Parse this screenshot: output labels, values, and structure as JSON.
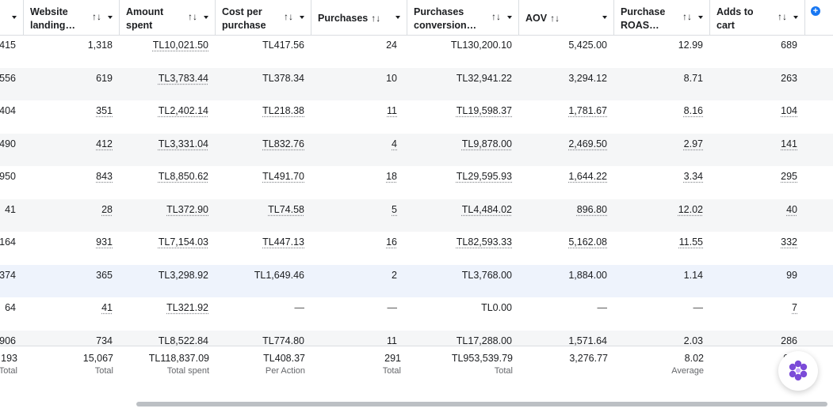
{
  "headers": [
    {
      "label": "",
      "sort": ""
    },
    {
      "label": "Website landing…",
      "sort": "↑↓"
    },
    {
      "label": "Amount spent",
      "sort": "↑↓"
    },
    {
      "label": "Cost per purchase",
      "sort": "↑↓"
    },
    {
      "label": "Purchases",
      "sort": "↑↓"
    },
    {
      "label": "Purchases conversion…",
      "sort": "↑↓"
    },
    {
      "label": "AOV",
      "sort": "↑↓"
    },
    {
      "label": "Purchase ROAS…",
      "sort": "↑↓"
    },
    {
      "label": "Adds to cart",
      "sort": "↑↓"
    }
  ],
  "add_column_icon": "+",
  "rows": [
    [
      "415",
      "1,318",
      "TL10,021.50",
      "TL417.56",
      "24",
      "TL130,200.10",
      "5,425.00",
      "12.99",
      "689"
    ],
    [
      "556",
      "619",
      "TL3,783.44",
      "TL378.34",
      "10",
      "TL32,941.22",
      "3,294.12",
      "8.71",
      "263"
    ],
    [
      "404",
      "351",
      "TL2,402.14",
      "TL218.38",
      "11",
      "TL19,598.37",
      "1,781.67",
      "8.16",
      "104"
    ],
    [
      "490",
      "412",
      "TL3,331.04",
      "TL832.76",
      "4",
      "TL9,878.00",
      "2,469.50",
      "2.97",
      "141"
    ],
    [
      "950",
      "843",
      "TL8,850.62",
      "TL491.70",
      "18",
      "TL29,595.93",
      "1,644.22",
      "3.34",
      "295"
    ],
    [
      "41",
      "28",
      "TL372.90",
      "TL74.58",
      "5",
      "TL4,484.02",
      "896.80",
      "12.02",
      "40"
    ],
    [
      "164",
      "931",
      "TL7,154.03",
      "TL447.13",
      "16",
      "TL82,593.33",
      "5,162.08",
      "11.55",
      "332"
    ],
    [
      "374",
      "365",
      "TL3,298.92",
      "TL1,649.46",
      "2",
      "TL3,768.00",
      "1,884.00",
      "1.14",
      "99"
    ],
    [
      "64",
      "41",
      "TL321.92",
      "—",
      "—",
      "TL0.00",
      "—",
      "—",
      "7"
    ],
    [
      "906",
      "734",
      "TL8,522.84",
      "TL774.80",
      "11",
      "TL17,288.00",
      "1,571.64",
      "2.03",
      "286"
    ]
  ],
  "totals": [
    {
      "value": ",193",
      "label": "Total"
    },
    {
      "value": "15,067",
      "label": "Total"
    },
    {
      "value": "TL118,837.09",
      "label": "Total spent"
    },
    {
      "value": "TL408.37",
      "label": "Per Action"
    },
    {
      "value": "291",
      "label": "Total"
    },
    {
      "value": "TL953,539.79",
      "label": "Total"
    },
    {
      "value": "3,276.77",
      "label": ""
    },
    {
      "value": "8.02",
      "label": "Average"
    },
    {
      "value": "6",
      "label": ""
    }
  ],
  "assistant_icon": "flower-icon"
}
